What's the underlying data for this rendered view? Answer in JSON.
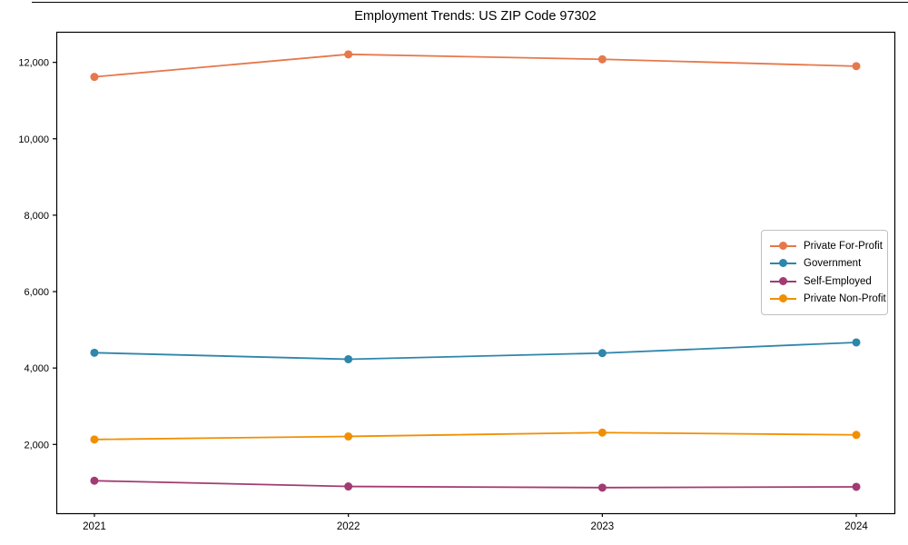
{
  "title": "Employment Trends: US ZIP Code 97302",
  "chart_data": {
    "type": "line",
    "title": "Employment Trends: US ZIP Code 97302",
    "xlabel": "",
    "ylabel": "",
    "categories": [
      "2021",
      "2022",
      "2023",
      "2024"
    ],
    "x": [
      2021,
      2022,
      2023,
      2024
    ],
    "series": [
      {
        "name": "Private For-Profit",
        "color": "#E6784B",
        "values": [
          11620,
          12210,
          12080,
          11900
        ]
      },
      {
        "name": "Government",
        "color": "#2E86AB",
        "values": [
          4400,
          4230,
          4390,
          4670
        ]
      },
      {
        "name": "Self-Employed",
        "color": "#A23B72",
        "values": [
          1050,
          900,
          870,
          890
        ]
      },
      {
        "name": "Private Non-Profit",
        "color": "#F18F01",
        "values": [
          2130,
          2210,
          2310,
          2250
        ]
      }
    ],
    "yticks": [
      2000,
      4000,
      6000,
      8000,
      10000,
      12000
    ],
    "ytick_labels": [
      "2,000",
      "4,000",
      "6,000",
      "8,000",
      "10,000",
      "12,000"
    ],
    "xlim": [
      2020.85,
      2024.15
    ],
    "ylim": [
      200,
      12800
    ],
    "grid": false,
    "legend_position": "center-right",
    "marker": "circle",
    "axis_color": "#000000"
  }
}
